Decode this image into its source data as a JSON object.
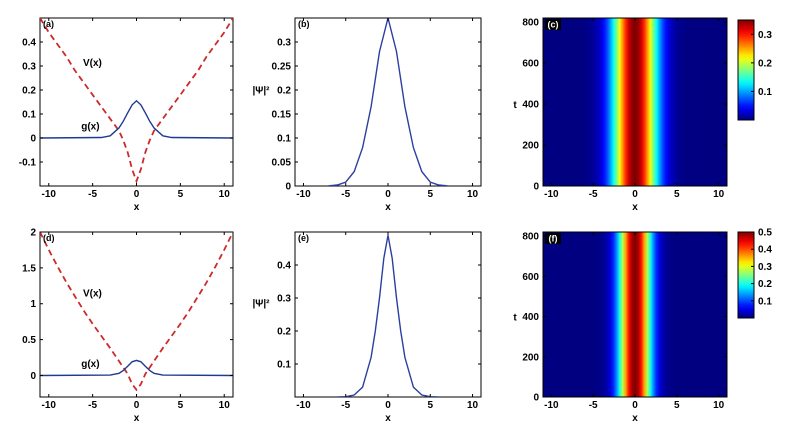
{
  "chart_data": [
    {
      "id": "a",
      "type": "line",
      "panel_label": "(a)",
      "xlabel": "x",
      "ylabel": "",
      "xlim": [
        -11,
        11
      ],
      "ylim": [
        -0.2,
        0.5
      ],
      "xticks": [
        -10,
        -5,
        0,
        5,
        10
      ],
      "yticks": [
        -0.1,
        0,
        0.1,
        0.2,
        0.3,
        0.4
      ],
      "ytick_labels": [
        "-0.1",
        "0",
        "0.1",
        "0.2",
        "0.3",
        "0.4"
      ],
      "series": [
        {
          "name": "V(x)",
          "color": "#cc2a2a",
          "dash": true,
          "x": [
            -11,
            -10,
            -9,
            -8,
            -7,
            -6,
            -5,
            -4,
            -3,
            -2,
            -1.5,
            -1,
            -0.5,
            0,
            0.5,
            1,
            1.5,
            2,
            3,
            4,
            5,
            6,
            7,
            8,
            9,
            10,
            11
          ],
          "y": [
            0.5,
            0.44,
            0.39,
            0.34,
            0.28,
            0.23,
            0.18,
            0.13,
            0.08,
            0.03,
            -0.01,
            -0.06,
            -0.13,
            -0.18,
            -0.13,
            -0.06,
            -0.01,
            0.03,
            0.08,
            0.13,
            0.18,
            0.23,
            0.28,
            0.34,
            0.39,
            0.44,
            0.5
          ]
        },
        {
          "name": "g(x)",
          "color": "#1f3a93",
          "dash": false,
          "x": [
            -11,
            -4,
            -3,
            -2,
            -1.5,
            -1,
            -0.5,
            0,
            0.5,
            1,
            1.5,
            2,
            3,
            4,
            11
          ],
          "y": [
            0,
            0.002,
            0.009,
            0.042,
            0.07,
            0.105,
            0.138,
            0.155,
            0.138,
            0.105,
            0.07,
            0.042,
            0.009,
            0.002,
            0
          ]
        }
      ],
      "annotations": [
        {
          "text": "V(x)",
          "x": -6.1,
          "y": 0.3
        },
        {
          "text": "g(x)",
          "x": -6.3,
          "y": 0.035
        }
      ]
    },
    {
      "id": "b",
      "type": "line",
      "panel_label": "(b)",
      "xlabel": "x",
      "ylabel": "|Ψ|²",
      "xlim": [
        -11,
        11
      ],
      "ylim": [
        0,
        0.35
      ],
      "xticks": [
        -10,
        -5,
        0,
        5,
        10
      ],
      "yticks": [
        0,
        0.05,
        0.1,
        0.15,
        0.2,
        0.25,
        0.3
      ],
      "ytick_labels": [
        "0",
        "0.05",
        "0.1",
        "0.15",
        "0.2",
        "0.25",
        "0.3"
      ],
      "series": [
        {
          "name": "",
          "color": "#2b3fa0",
          "dash": false,
          "x": [
            -7,
            -6,
            -5,
            -4,
            -3,
            -2,
            -1,
            0,
            1,
            2,
            3,
            4,
            5,
            6,
            7
          ],
          "y": [
            0.0004,
            0.002,
            0.008,
            0.03,
            0.08,
            0.165,
            0.28,
            0.35,
            0.28,
            0.165,
            0.08,
            0.03,
            0.008,
            0.002,
            0.0004
          ]
        }
      ]
    },
    {
      "id": "c",
      "type": "heatmap",
      "panel_label": "(c)",
      "xlabel": "x",
      "ylabel": "t",
      "xlim": [
        -11,
        11
      ],
      "ylim": [
        0,
        820
      ],
      "xticks": [
        -10,
        -5,
        0,
        5,
        10
      ],
      "yticks": [
        0,
        200,
        400,
        600,
        800
      ],
      "ytick_labels": [
        "0",
        "200",
        "400",
        "600",
        "800"
      ],
      "profile_peak": 0.35,
      "profile_width": 1.85,
      "colorbar": {
        "ticks": [
          0.1,
          0.2,
          0.3
        ],
        "tick_labels": [
          "0.1",
          "0.2",
          "0.3"
        ],
        "range": [
          0,
          0.35
        ]
      }
    },
    {
      "id": "d",
      "type": "line",
      "panel_label": "(d)",
      "xlabel": "x",
      "ylabel": "",
      "xlim": [
        -11,
        11
      ],
      "ylim": [
        -0.3,
        2
      ],
      "xticks": [
        -10,
        -5,
        0,
        5,
        10
      ],
      "yticks": [
        0,
        0.5,
        1,
        1.5,
        2
      ],
      "ytick_labels": [
        "0",
        "0.5",
        "1",
        "1.5",
        "2"
      ],
      "series": [
        {
          "name": "V(x)",
          "color": "#cc2a2a",
          "dash": true,
          "x": [
            -11,
            -10,
            -9,
            -8,
            -7,
            -6,
            -5,
            -4,
            -3,
            -2,
            -1,
            -0.5,
            0,
            0.5,
            1,
            2,
            3,
            4,
            5,
            6,
            7,
            8,
            9,
            10,
            11
          ],
          "y": [
            2,
            1.75,
            1.52,
            1.3,
            1.1,
            0.9,
            0.72,
            0.55,
            0.38,
            0.2,
            0.02,
            -0.12,
            -0.2,
            -0.12,
            0.02,
            0.2,
            0.38,
            0.55,
            0.72,
            0.9,
            1.1,
            1.3,
            1.52,
            1.75,
            2
          ]
        },
        {
          "name": "g(x)",
          "color": "#1f3a93",
          "dash": false,
          "x": [
            -11,
            -3,
            -2,
            -1.5,
            -1,
            -0.5,
            0,
            0.5,
            1,
            1.5,
            2,
            3,
            11
          ],
          "y": [
            0,
            0.005,
            0.03,
            0.07,
            0.13,
            0.19,
            0.21,
            0.19,
            0.13,
            0.07,
            0.03,
            0.005,
            0
          ]
        }
      ],
      "annotations": [
        {
          "text": "V(x)",
          "x": -6.1,
          "y": 1.1
        },
        {
          "text": "g(x)",
          "x": -6.3,
          "y": 0.12
        }
      ]
    },
    {
      "id": "e",
      "type": "line",
      "panel_label": "(e)",
      "xlabel": "x",
      "ylabel": "|Ψ|²",
      "xlim": [
        -11,
        11
      ],
      "ylim": [
        0,
        0.5
      ],
      "xticks": [
        -10,
        -5,
        0,
        5,
        10
      ],
      "yticks": [
        0.1,
        0.2,
        0.3,
        0.4
      ],
      "ytick_labels": [
        "0.1",
        "0.2",
        "0.3",
        "0.4"
      ],
      "series": [
        {
          "name": "",
          "color": "#2b3fa0",
          "dash": false,
          "x": [
            -6,
            -5,
            -4,
            -3,
            -2,
            -1.5,
            -1,
            -0.5,
            0,
            0.5,
            1,
            1.5,
            2,
            3,
            4,
            5,
            6
          ],
          "y": [
            0.0002,
            0.001,
            0.006,
            0.03,
            0.12,
            0.2,
            0.3,
            0.42,
            0.49,
            0.42,
            0.3,
            0.2,
            0.12,
            0.03,
            0.006,
            0.001,
            0.0002
          ]
        }
      ]
    },
    {
      "id": "f",
      "type": "heatmap",
      "panel_label": "(f)",
      "xlabel": "x",
      "ylabel": "t",
      "xlim": [
        -11,
        11
      ],
      "ylim": [
        0,
        820
      ],
      "xticks": [
        -10,
        -5,
        0,
        5,
        10
      ],
      "yticks": [
        0,
        200,
        400,
        600,
        800
      ],
      "ytick_labels": [
        "0",
        "200",
        "400",
        "600",
        "800"
      ],
      "profile_peak": 0.5,
      "profile_width": 1.35,
      "colorbar": {
        "ticks": [
          0.1,
          0.2,
          0.3,
          0.4,
          0.5
        ],
        "tick_labels": [
          "0.1",
          "0.2",
          "0.3",
          "0.4",
          "0.5"
        ],
        "range": [
          0,
          0.5
        ]
      }
    }
  ]
}
